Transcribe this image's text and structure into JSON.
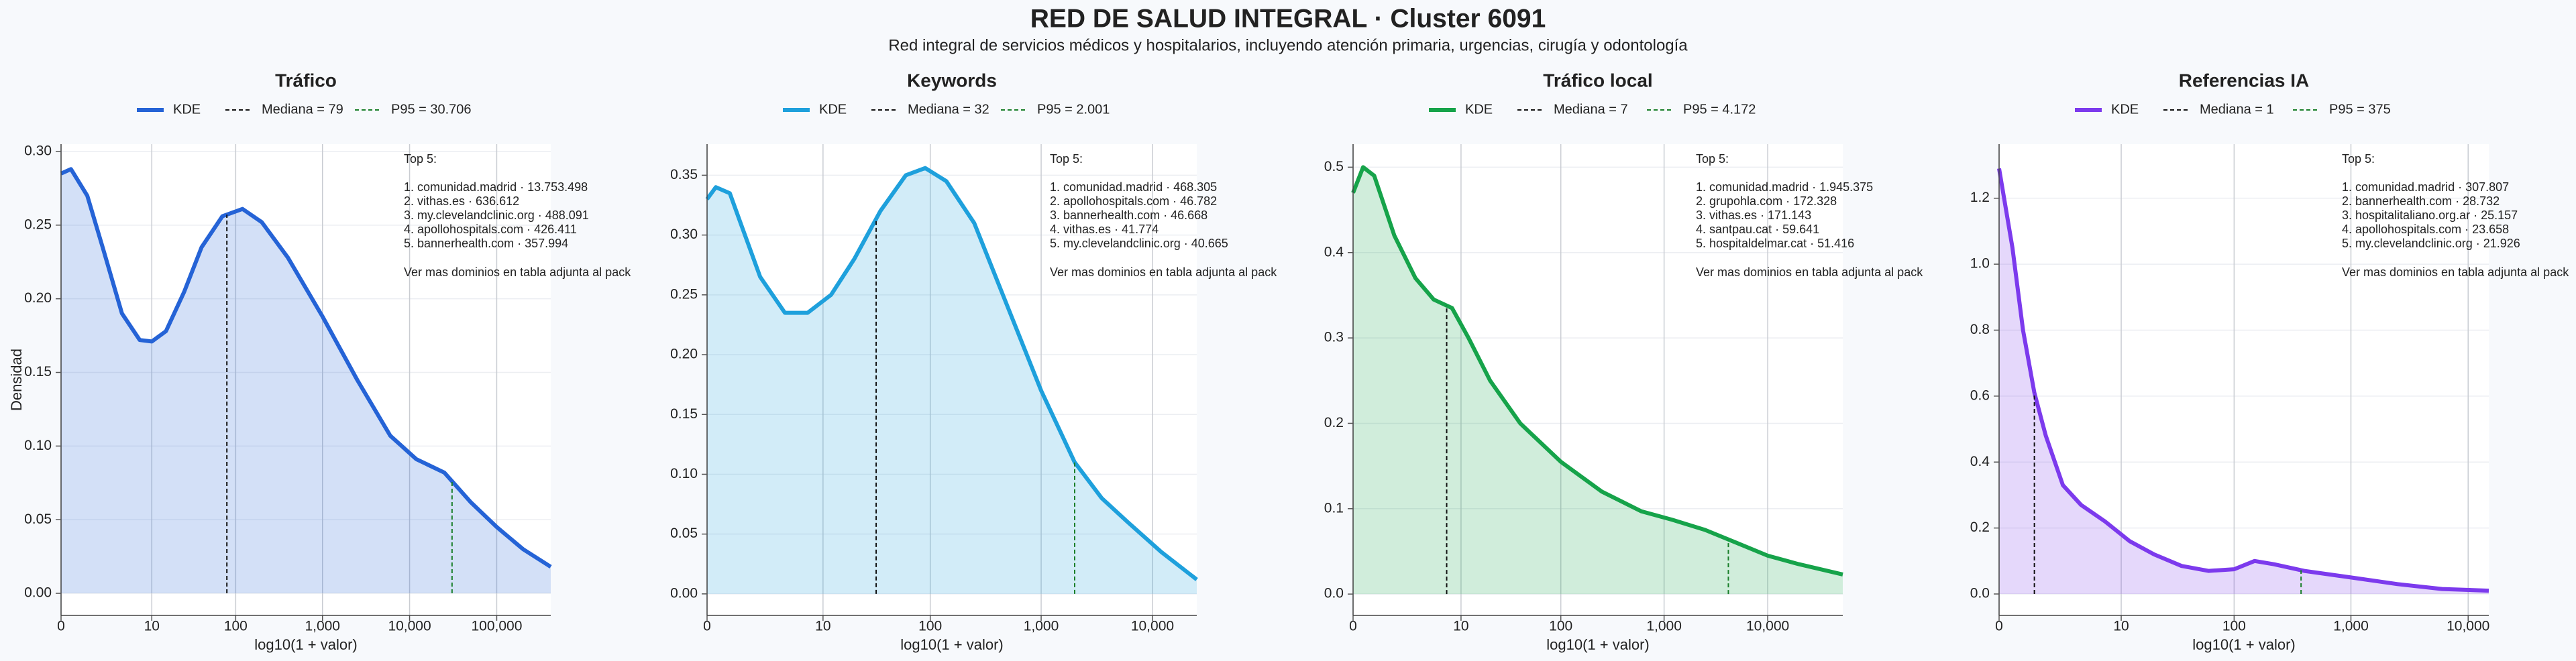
{
  "title": "RED DE SALUD INTEGRAL · Cluster 6091",
  "subtitle": "Red integral de servicios médicos y hospitalarios, incluyendo atención primaria, urgencias, cirugía y odontología",
  "chart_data": [
    {
      "type": "area",
      "title": "Tráfico",
      "xlabel": "log10(1 + valor)",
      "ylabel": "Densidad",
      "xscale": "log1p",
      "grid": true,
      "x": [
        0,
        0.3,
        1,
        2,
        4,
        7,
        10,
        15,
        25,
        40,
        70,
        120,
        200,
        400,
        1000,
        2500,
        6000,
        12000,
        25000,
        50000,
        100000,
        200000,
        417000
      ],
      "series": [
        {
          "name": "KDE",
          "color": "#2563d6",
          "values": [
            0.285,
            0.288,
            0.27,
            0.235,
            0.19,
            0.172,
            0.171,
            0.178,
            0.205,
            0.235,
            0.256,
            0.261,
            0.252,
            0.228,
            0.188,
            0.145,
            0.107,
            0.091,
            0.082,
            0.062,
            0.045,
            0.03,
            0.018
          ]
        }
      ],
      "reference_lines": [
        {
          "name": "Mediana = 79",
          "value": 79,
          "color": "#111111"
        },
        {
          "name": "P95 = 30.706",
          "value": 30706,
          "color": "#1a7f2a"
        }
      ],
      "xlim": [
        0,
        417000
      ],
      "xticks": [
        0,
        10,
        100,
        {
          "value": 1000,
          "label": "1,000"
        },
        {
          "value": 10000,
          "label": "10,000"
        },
        {
          "value": 100000,
          "label": "100,000"
        }
      ],
      "ylim": [
        -0.015,
        0.305
      ],
      "yticks": [
        {
          "value": 0,
          "label": "0.00"
        },
        {
          "value": 0.05,
          "label": "0.05"
        },
        {
          "value": 0.1,
          "label": "0.10"
        },
        {
          "value": 0.15,
          "label": "0.15"
        },
        {
          "value": 0.2,
          "label": "0.20"
        },
        {
          "value": 0.25,
          "label": "0.25"
        },
        {
          "value": 0.3,
          "label": "0.30"
        }
      ],
      "annotation": {
        "heading": "Top 5:",
        "items": [
          "1. comunidad.madrid · 13.753.498",
          "2. vithas.es · 636.612",
          "3. my.clevelandclinic.org · 488.091",
          "4. apollohospitals.com · 426.411",
          "5. bannerhealth.com · 357.994"
        ],
        "note": "Ver mas dominios en tabla adjunta al pack"
      }
    },
    {
      "type": "area",
      "title": "Keywords",
      "xlabel": "log10(1 + valor)",
      "xscale": "log1p",
      "grid": true,
      "x": [
        0,
        0.2,
        0.6,
        1,
        2,
        4,
        7,
        12,
        20,
        35,
        60,
        90,
        140,
        250,
        500,
        1000,
        2000,
        3500,
        6000,
        12000,
        25000
      ],
      "series": [
        {
          "name": "KDE",
          "color": "#1ea0dc",
          "values": [
            0.33,
            0.34,
            0.335,
            0.31,
            0.265,
            0.235,
            0.235,
            0.25,
            0.28,
            0.32,
            0.35,
            0.356,
            0.345,
            0.31,
            0.24,
            0.17,
            0.11,
            0.08,
            0.06,
            0.035,
            0.012
          ]
        }
      ],
      "reference_lines": [
        {
          "name": "Mediana = 32",
          "value": 32,
          "color": "#111111"
        },
        {
          "name": "P95 = 2.001",
          "value": 2001,
          "color": "#1a7f2a"
        }
      ],
      "xlim": [
        0,
        25000
      ],
      "xticks": [
        0,
        10,
        100,
        {
          "value": 1000,
          "label": "1,000"
        },
        {
          "value": 10000,
          "label": "10,000"
        }
      ],
      "ylim": [
        -0.018,
        0.376
      ],
      "yticks": [
        {
          "value": 0,
          "label": "0.00"
        },
        {
          "value": 0.05,
          "label": "0.05"
        },
        {
          "value": 0.1,
          "label": "0.10"
        },
        {
          "value": 0.15,
          "label": "0.15"
        },
        {
          "value": 0.2,
          "label": "0.20"
        },
        {
          "value": 0.25,
          "label": "0.25"
        },
        {
          "value": 0.3,
          "label": "0.30"
        },
        {
          "value": 0.35,
          "label": "0.35"
        }
      ],
      "annotation": {
        "heading": "Top 5:",
        "items": [
          "1. comunidad.madrid · 468.305",
          "2. apollohospitals.com · 46.782",
          "3. bannerhealth.com · 46.668",
          "4. vithas.es · 41.774",
          "5. my.clevelandclinic.org · 40.665"
        ],
        "note": "Ver mas dominios en tabla adjunta al pack"
      }
    },
    {
      "type": "area",
      "title": "Tráfico local",
      "xlabel": "log10(1 + valor)",
      "xscale": "log1p",
      "grid": true,
      "x": [
        0,
        0.25,
        0.6,
        1.5,
        3,
        5,
        8,
        12,
        20,
        40,
        100,
        250,
        600,
        1200,
        2500,
        5000,
        10000,
        20000,
        53000
      ],
      "series": [
        {
          "name": "KDE",
          "color": "#16a34a",
          "values": [
            0.47,
            0.5,
            0.49,
            0.42,
            0.37,
            0.345,
            0.335,
            0.3,
            0.25,
            0.2,
            0.155,
            0.12,
            0.097,
            0.087,
            0.075,
            0.06,
            0.045,
            0.035,
            0.023
          ]
        }
      ],
      "reference_lines": [
        {
          "name": "Mediana = 7",
          "value": 7,
          "color": "#111111"
        },
        {
          "name": "P95 = 4.172",
          "value": 4172,
          "color": "#1a7f2a"
        }
      ],
      "xlim": [
        0,
        53000
      ],
      "xticks": [
        0,
        10,
        100,
        {
          "value": 1000,
          "label": "1,000"
        },
        {
          "value": 10000,
          "label": "10,000"
        }
      ],
      "ylim": [
        -0.025,
        0.527
      ],
      "yticks": [
        {
          "value": 0,
          "label": "0.0"
        },
        {
          "value": 0.1,
          "label": "0.1"
        },
        {
          "value": 0.2,
          "label": "0.2"
        },
        {
          "value": 0.3,
          "label": "0.3"
        },
        {
          "value": 0.4,
          "label": "0.4"
        },
        {
          "value": 0.5,
          "label": "0.5"
        }
      ],
      "annotation": {
        "heading": "Top 5:",
        "items": [
          "1. comunidad.madrid · 1.945.375",
          "2. grupohla.com · 172.328",
          "3. vithas.es · 171.143",
          "4. santpau.cat · 59.641",
          "5. hospitaldelmar.cat · 51.416"
        ],
        "note": "Ver mas dominios en tabla adjunta al pack"
      }
    },
    {
      "type": "area",
      "title": "Referencias IA",
      "xlabel": "log10(1 + valor)",
      "xscale": "log1p",
      "grid": true,
      "x": [
        0,
        0.3,
        0.6,
        1,
        1.5,
        2.5,
        4,
        7,
        12,
        20,
        35,
        60,
        100,
        150,
        220,
        400,
        1000,
        2500,
        6000,
        15000
      ],
      "series": [
        {
          "name": "KDE",
          "color": "#7c3aed",
          "values": [
            1.29,
            1.05,
            0.8,
            0.61,
            0.48,
            0.33,
            0.27,
            0.22,
            0.16,
            0.12,
            0.085,
            0.07,
            0.075,
            0.1,
            0.09,
            0.07,
            0.05,
            0.03,
            0.015,
            0.01
          ]
        }
      ],
      "reference_lines": [
        {
          "name": "Mediana = 1",
          "value": 1,
          "color": "#111111"
        },
        {
          "name": "P95 = 375",
          "value": 375,
          "color": "#1a7f2a"
        }
      ],
      "xlim": [
        0,
        15000
      ],
      "xticks": [
        0,
        10,
        100,
        {
          "value": 1000,
          "label": "1,000"
        },
        {
          "value": 10000,
          "label": "10,000"
        }
      ],
      "ylim": [
        -0.065,
        1.364
      ],
      "yticks": [
        {
          "value": 0,
          "label": "0.0"
        },
        {
          "value": 0.2,
          "label": "0.2"
        },
        {
          "value": 0.4,
          "label": "0.4"
        },
        {
          "value": 0.6,
          "label": "0.6"
        },
        {
          "value": 0.8,
          "label": "0.8"
        },
        {
          "value": 1,
          "label": "1.0"
        },
        {
          "value": 1.2,
          "label": "1.2"
        }
      ],
      "annotation": {
        "heading": "Top 5:",
        "items": [
          "1. comunidad.madrid · 307.807",
          "2. bannerhealth.com · 28.732",
          "3. hospitalitaliano.org.ar · 25.157",
          "4. apollohospitals.com · 23.658",
          "5. my.clevelandclinic.org · 21.926"
        ],
        "note": "Ver mas dominios en tabla adjunta al pack"
      }
    }
  ]
}
